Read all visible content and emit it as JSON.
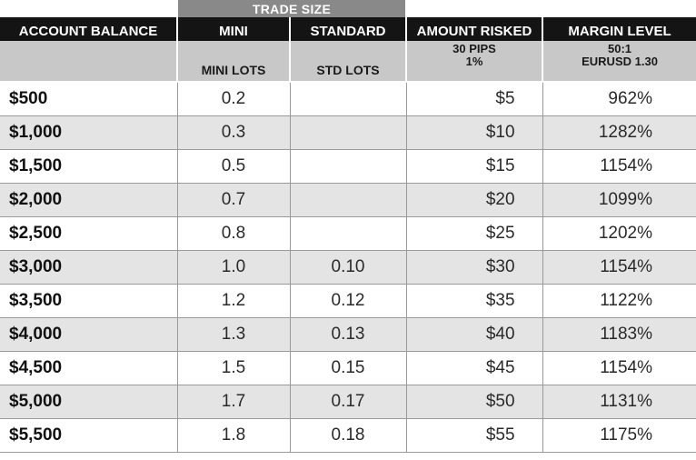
{
  "table": {
    "group_header": "TRADE SIZE",
    "columns": {
      "account_balance": "ACCOUNT BALANCE",
      "mini": "MINI",
      "standard": "STANDARD",
      "amount_risked": "AMOUNT RISKED",
      "margin_level": "MARGIN LEVEL"
    },
    "subheaders": {
      "mini_lots": "MINI LOTS",
      "std_lots": "STD LOTS",
      "risk_line1": "30 PIPS",
      "risk_line2": "1%",
      "margin_line1": "50:1",
      "margin_line2": "EURUSD 1.30"
    },
    "rows": [
      {
        "balance": "$500",
        "mini": "0.2",
        "std": "",
        "risk": "$5",
        "margin": "962%"
      },
      {
        "balance": "$1,000",
        "mini": "0.3",
        "std": "",
        "risk": "$10",
        "margin": "1282%"
      },
      {
        "balance": "$1,500",
        "mini": "0.5",
        "std": "",
        "risk": "$15",
        "margin": "1154%"
      },
      {
        "balance": "$2,000",
        "mini": "0.7",
        "std": "",
        "risk": "$20",
        "margin": "1099%"
      },
      {
        "balance": "$2,500",
        "mini": "0.8",
        "std": "",
        "risk": "$25",
        "margin": "1202%"
      },
      {
        "balance": "$3,000",
        "mini": "1.0",
        "std": "0.10",
        "risk": "$30",
        "margin": "1154%"
      },
      {
        "balance": "$3,500",
        "mini": "1.2",
        "std": "0.12",
        "risk": "$35",
        "margin": "1122%"
      },
      {
        "balance": "$4,000",
        "mini": "1.3",
        "std": "0.13",
        "risk": "$40",
        "margin": "1183%"
      },
      {
        "balance": "$4,500",
        "mini": "1.5",
        "std": "0.15",
        "risk": "$45",
        "margin": "1154%"
      },
      {
        "balance": "$5,000",
        "mini": "1.7",
        "std": "0.17",
        "risk": "$50",
        "margin": "1131%"
      },
      {
        "balance": "$5,500",
        "mini": "1.8",
        "std": "0.18",
        "risk": "$55",
        "margin": "1175%"
      }
    ]
  }
}
